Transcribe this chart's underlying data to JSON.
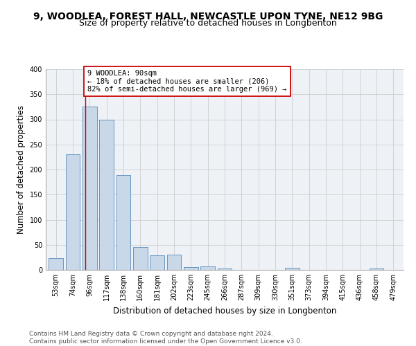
{
  "title": "9, WOODLEA, FOREST HALL, NEWCASTLE UPON TYNE, NE12 9BG",
  "subtitle": "Size of property relative to detached houses in Longbenton",
  "xlabel": "Distribution of detached houses by size in Longbenton",
  "ylabel": "Number of detached properties",
  "footer_line1": "Contains HM Land Registry data © Crown copyright and database right 2024.",
  "footer_line2": "Contains public sector information licensed under the Open Government Licence v3.0.",
  "bar_labels": [
    "53sqm",
    "74sqm",
    "96sqm",
    "117sqm",
    "138sqm",
    "160sqm",
    "181sqm",
    "202sqm",
    "223sqm",
    "245sqm",
    "266sqm",
    "287sqm",
    "309sqm",
    "330sqm",
    "351sqm",
    "373sqm",
    "394sqm",
    "415sqm",
    "436sqm",
    "458sqm",
    "479sqm"
  ],
  "bar_values": [
    23,
    231,
    325,
    299,
    189,
    46,
    29,
    30,
    5,
    7,
    3,
    0,
    0,
    0,
    4,
    0,
    0,
    0,
    0,
    3,
    0
  ],
  "bar_color": "#c8d8e8",
  "bar_edge_color": "#5588bb",
  "property_label": "9 WOODLEA: 90sqm",
  "annotation_line1": "← 18% of detached houses are smaller (206)",
  "annotation_line2": "82% of semi-detached houses are larger (969) →",
  "vline_color": "#cc0000",
  "annotation_box_edge": "#cc0000",
  "ylim": [
    0,
    400
  ],
  "yticks": [
    0,
    50,
    100,
    150,
    200,
    250,
    300,
    350,
    400
  ],
  "grid_color": "#cccccc",
  "background_color": "#eef2f7",
  "title_fontsize": 10,
  "subtitle_fontsize": 9,
  "xlabel_fontsize": 8.5,
  "ylabel_fontsize": 8.5,
  "tick_fontsize": 7,
  "annotation_fontsize": 7.5,
  "footer_fontsize": 6.5,
  "vline_x_index": 1.727
}
